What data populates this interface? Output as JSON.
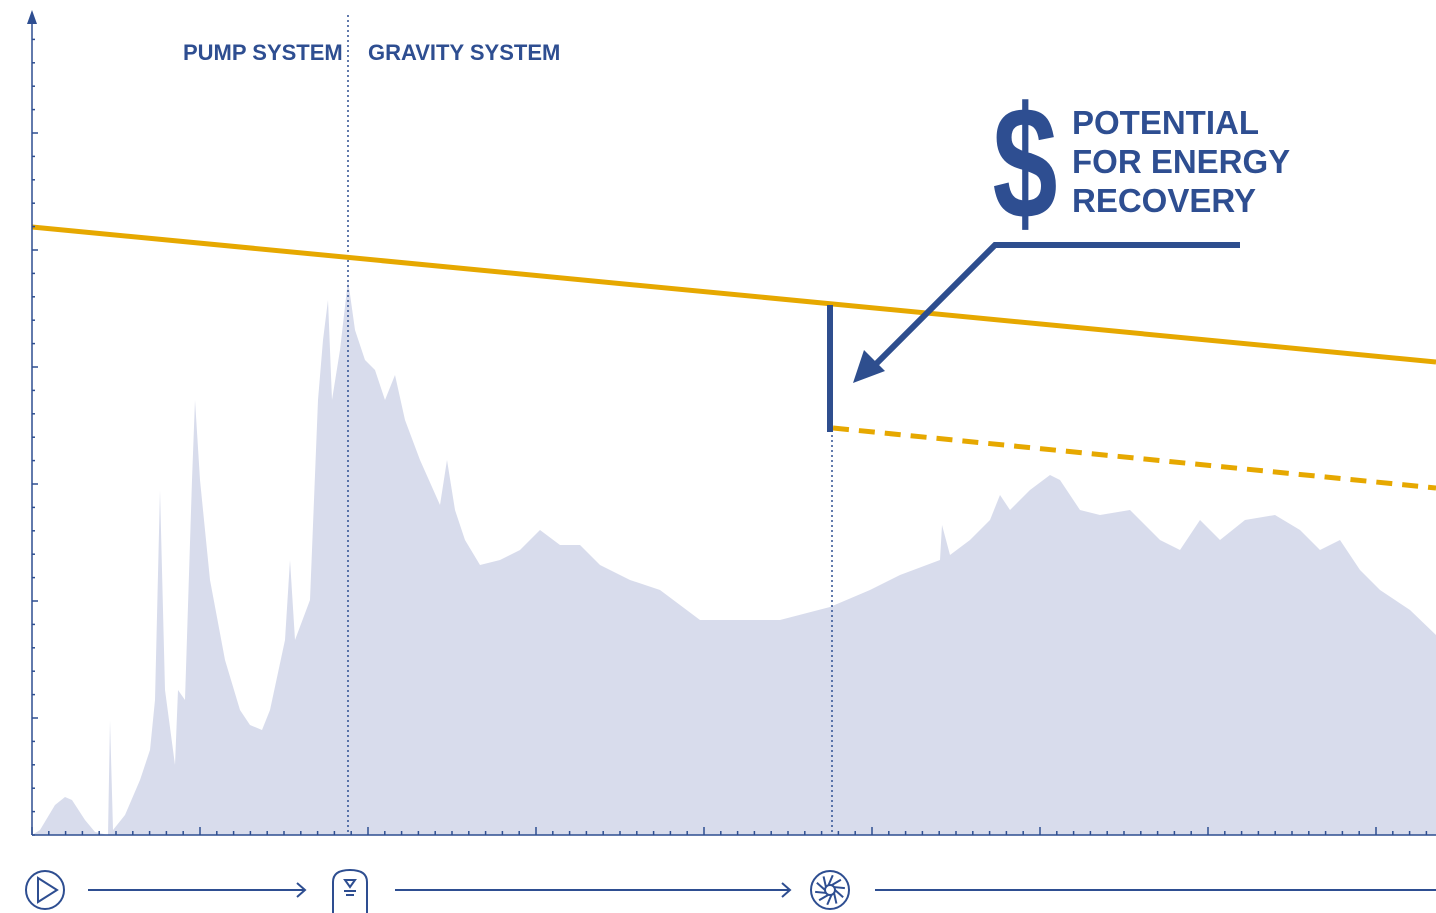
{
  "labels": {
    "pump_system": "PUMP SYSTEM",
    "gravity_system": "GRAVITY SYSTEM"
  },
  "callout": {
    "symbol": "$",
    "lines": [
      "POTENTIAL",
      "FOR ENERGY",
      "RECOVERY"
    ]
  }
}
